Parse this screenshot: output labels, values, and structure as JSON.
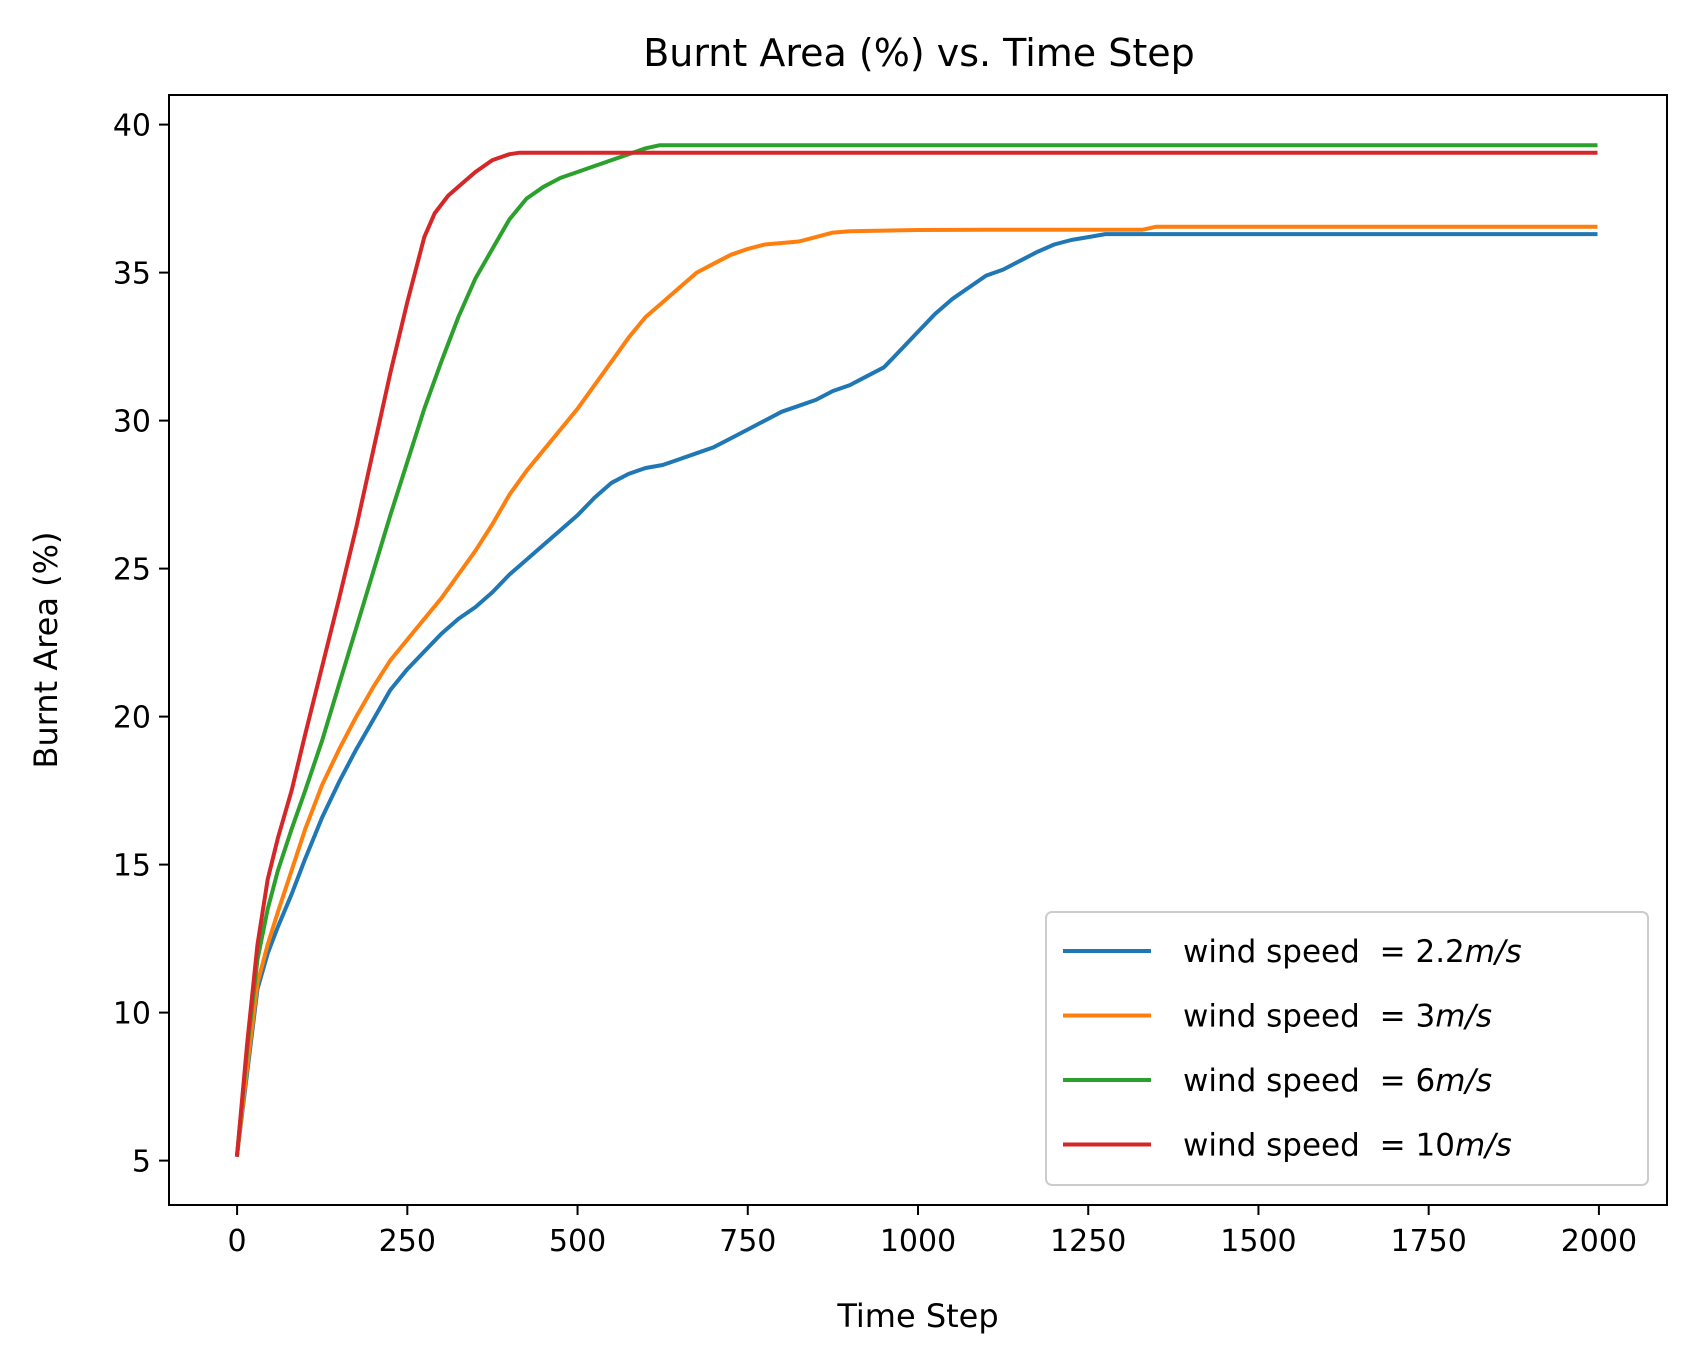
{
  "chart_data": {
    "type": "line",
    "title": "Burnt Area (%) vs. Time Step",
    "xlabel": "Time Step",
    "ylabel": "Burnt Area (%)",
    "xlim": [
      -100,
      2100
    ],
    "ylim": [
      3.5,
      41
    ],
    "xticks": [
      0,
      250,
      500,
      750,
      1000,
      1250,
      1500,
      1750,
      2000
    ],
    "yticks": [
      5,
      10,
      15,
      20,
      25,
      30,
      35,
      40
    ],
    "grid": false,
    "legend_position": "lower right",
    "series": [
      {
        "name": "wind speed = 2.2m/s",
        "legend_prefix": "wind speed ",
        "legend_math": "= 2.2",
        "legend_unit": "m/s",
        "color": "#1f77b4",
        "x": [
          0,
          15,
          30,
          45,
          60,
          80,
          100,
          125,
          150,
          175,
          200,
          225,
          250,
          275,
          300,
          325,
          350,
          375,
          400,
          425,
          450,
          475,
          500,
          525,
          550,
          575,
          600,
          625,
          650,
          675,
          700,
          725,
          750,
          775,
          800,
          825,
          850,
          875,
          900,
          925,
          950,
          975,
          1000,
          1025,
          1050,
          1075,
          1100,
          1125,
          1150,
          1175,
          1200,
          1225,
          1250,
          1275,
          1300,
          1500,
          1750,
          1995
        ],
        "y": [
          5.2,
          8.0,
          10.8,
          12.0,
          12.9,
          14.0,
          15.2,
          16.6,
          17.8,
          18.9,
          19.9,
          20.9,
          21.6,
          22.2,
          22.8,
          23.3,
          23.7,
          24.2,
          24.8,
          25.3,
          25.8,
          26.3,
          26.8,
          27.4,
          27.9,
          28.2,
          28.4,
          28.5,
          28.7,
          28.9,
          29.1,
          29.4,
          29.7,
          30.0,
          30.3,
          30.5,
          30.7,
          31.0,
          31.2,
          31.5,
          31.8,
          32.4,
          33.0,
          33.6,
          34.1,
          34.5,
          34.9,
          35.1,
          35.4,
          35.7,
          35.95,
          36.1,
          36.2,
          36.3,
          36.3,
          36.3,
          36.3,
          36.3
        ]
      },
      {
        "name": "wind speed = 3m/s",
        "legend_prefix": "wind speed ",
        "legend_math": "= 3",
        "legend_unit": "m/s",
        "color": "#ff7f0e",
        "x": [
          0,
          15,
          30,
          45,
          60,
          80,
          100,
          125,
          150,
          175,
          200,
          225,
          250,
          275,
          300,
          325,
          350,
          375,
          400,
          425,
          450,
          475,
          500,
          525,
          550,
          575,
          600,
          625,
          650,
          675,
          700,
          725,
          750,
          775,
          800,
          825,
          850,
          875,
          900,
          950,
          1000,
          1100,
          1200,
          1300,
          1330,
          1350,
          1500,
          1750,
          1995
        ],
        "y": [
          5.2,
          8.2,
          11.0,
          12.3,
          13.4,
          14.8,
          16.2,
          17.7,
          18.9,
          20.0,
          21.0,
          21.9,
          22.6,
          23.3,
          24.0,
          24.8,
          25.6,
          26.5,
          27.5,
          28.3,
          29.0,
          29.7,
          30.4,
          31.2,
          32.0,
          32.8,
          33.5,
          34.0,
          34.5,
          35.0,
          35.3,
          35.6,
          35.8,
          35.95,
          36.0,
          36.05,
          36.2,
          36.35,
          36.4,
          36.42,
          36.44,
          36.45,
          36.45,
          36.45,
          36.45,
          36.55,
          36.55,
          36.55,
          36.55
        ]
      },
      {
        "name": "wind speed = 6m/s",
        "legend_prefix": "wind speed ",
        "legend_math": "= 6",
        "legend_unit": "m/s",
        "color": "#2ca02c",
        "x": [
          0,
          15,
          30,
          45,
          60,
          80,
          100,
          125,
          150,
          175,
          200,
          225,
          250,
          275,
          300,
          325,
          350,
          375,
          400,
          425,
          450,
          475,
          500,
          525,
          550,
          575,
          600,
          620,
          1000,
          1500,
          1995
        ],
        "y": [
          5.2,
          8.8,
          11.8,
          13.5,
          14.8,
          16.2,
          17.5,
          19.2,
          21.1,
          23.0,
          24.9,
          26.8,
          28.6,
          30.4,
          32.0,
          33.5,
          34.8,
          35.8,
          36.8,
          37.5,
          37.9,
          38.2,
          38.4,
          38.6,
          38.8,
          39.0,
          39.2,
          39.3,
          39.3,
          39.3,
          39.3
        ]
      },
      {
        "name": "wind speed = 10m/s",
        "legend_prefix": "wind speed ",
        "legend_math": "= 10",
        "legend_unit": "m/s",
        "color": "#d62728",
        "x": [
          0,
          15,
          30,
          45,
          60,
          80,
          100,
          125,
          150,
          175,
          200,
          225,
          250,
          275,
          290,
          310,
          330,
          350,
          375,
          400,
          415,
          1000,
          1500,
          1995
        ],
        "y": [
          5.2,
          9.0,
          12.3,
          14.5,
          15.9,
          17.5,
          19.4,
          21.7,
          24.0,
          26.4,
          29.0,
          31.6,
          34.0,
          36.2,
          37.0,
          37.6,
          38.0,
          38.4,
          38.8,
          39.0,
          39.05,
          39.05,
          39.05,
          39.05
        ]
      }
    ]
  }
}
